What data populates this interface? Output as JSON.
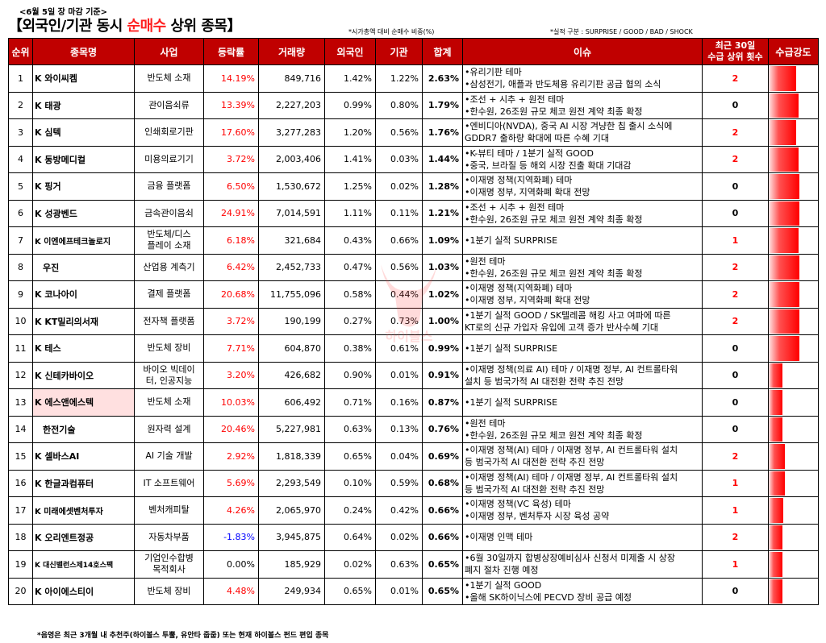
{
  "caption_date": "<6월 5일 장 마감 기준>",
  "title_pre": "【외국인/기관 동시 ",
  "title_hl": "순매수",
  "title_post": " 상위 종목】",
  "note_ratio": "*시가총액 대비 순매수 비중(%)",
  "note_perf": "*실적 구분 : SURPRISE / GOOD / BAD / SHOCK",
  "watermark_text": "하이볼스",
  "headers": {
    "rank": "순위",
    "name": "종목명",
    "sector": "사업",
    "change": "등락률",
    "volume": "거래량",
    "foreign": "외국인",
    "inst": "기관",
    "total": "합계",
    "issue": "이슈",
    "count_line1": "최근 30일",
    "count_line2": "수급 상위 횟수",
    "strength": "수급강도"
  },
  "accent_color": "#c00000",
  "rows": [
    {
      "rank": "1",
      "name": "K 와이씨켐",
      "sector": "반도체 소재",
      "change": "14.19%",
      "volume": "849,716",
      "foreign": "1.42%",
      "inst": "1.22%",
      "total": "2.63%",
      "issue1": "•유리기판 테마",
      "issue2": "•삼성전기, 애플과 반도체용 유리기판 공급 협의 소식",
      "count": "2",
      "strength": 0.55
    },
    {
      "rank": "2",
      "name": "K 태광",
      "sector": "관이음쇠류",
      "change": "13.39%",
      "volume": "2,227,203",
      "foreign": "0.99%",
      "inst": "0.80%",
      "total": "1.79%",
      "issue1": "•조선 + 시추 + 원전 테마",
      "issue2": "•한수원, 26조원 규모 체코 원전 계약 최종 확정",
      "count": "0",
      "strength": 0.6
    },
    {
      "rank": "3",
      "name": "K 심텍",
      "sector": "인쇄회로기판",
      "change": "17.60%",
      "volume": "3,277,283",
      "foreign": "1.20%",
      "inst": "0.56%",
      "total": "1.76%",
      "issue1": "•엔비디아(NVDA), 중국 AI 시장 겨냥한 칩 출시 소식에",
      "issue2": "GDDR7 출하량 확대에 따른 수혜 기대",
      "count": "2",
      "strength": 0.55
    },
    {
      "rank": "4",
      "name": "K 동방메디컬",
      "sector": "미용의료기기",
      "change": "3.72%",
      "volume": "2,003,406",
      "foreign": "1.41%",
      "inst": "0.03%",
      "total": "1.44%",
      "issue1": "•K-뷰티 테마 / 1분기 실적 GOOD",
      "issue2": "•중국, 브라질 등 해외 시장 진출 확대 기대감",
      "count": "2",
      "strength": 0.6
    },
    {
      "rank": "5",
      "name": "K 핑거",
      "sector": "금융 플랫폼",
      "change": "6.50%",
      "volume": "1,530,672",
      "foreign": "1.25%",
      "inst": "0.02%",
      "total": "1.28%",
      "issue1": "•이재명 정책(지역화폐) 테마",
      "issue2": "•이재명 정부, 지역화폐 확대 전망",
      "count": "0",
      "strength": 0.62
    },
    {
      "rank": "6",
      "name": "K 성광벤드",
      "sector": "금속관이음쇠",
      "change": "24.91%",
      "volume": "7,014,591",
      "foreign": "1.11%",
      "inst": "0.11%",
      "total": "1.21%",
      "issue1": "•조선 + 시추 + 원전 테마",
      "issue2": "•한수원, 26조원 규모 체코 원전 계약 최종 확정",
      "count": "0",
      "strength": 0.62
    },
    {
      "rank": "7",
      "name": "K 이엔에프테크놀로지",
      "sector1": "반도체/디스",
      "sector2": "플레이 소재",
      "change": "6.18%",
      "volume": "321,684",
      "foreign": "0.43%",
      "inst": "0.66%",
      "total": "1.09%",
      "issue1": "•1분기 실적 SURPRISE",
      "issue2": "",
      "count": "1",
      "strength": 0.6
    },
    {
      "rank": "8",
      "name": "우진",
      "sector": "산업용 계측기",
      "change": "6.42%",
      "volume": "2,452,733",
      "foreign": "0.47%",
      "inst": "0.56%",
      "total": "1.03%",
      "issue1": "•원전 테마",
      "issue2": "•한수원, 26조원 규모 체코 원전 계약 최종 확정",
      "count": "2",
      "strength": 0.62
    },
    {
      "rank": "9",
      "name": "K 코나아이",
      "sector": "결제 플랫폼",
      "change": "20.68%",
      "volume": "11,755,096",
      "foreign": "0.58%",
      "inst": "0.44%",
      "total": "1.02%",
      "issue1": "•이재명 정책(지역화폐) 테마",
      "issue2": "•이재명 정부, 지역화폐 확대 전망",
      "count": "2",
      "strength": 0.62
    },
    {
      "rank": "10",
      "name": "K KT밀리의서재",
      "sector": "전자책 플랫폼",
      "change": "3.72%",
      "volume": "190,199",
      "foreign": "0.27%",
      "inst": "0.73%",
      "total": "1.00%",
      "issue1": "•1분기 실적 GOOD / SK텔레콤 해킹 사고 여파에 따른",
      "issue2": "KT로의 신규 가입자 유입에 고객 증가 반사수혜 기대",
      "count": "2",
      "strength": 0.62
    },
    {
      "rank": "11",
      "name": "K 테스",
      "sector": "반도체 장비",
      "change": "7.71%",
      "volume": "604,870",
      "foreign": "0.38%",
      "inst": "0.61%",
      "total": "0.99%",
      "issue1": "•1분기 실적 SURPRISE",
      "issue2": "",
      "count": "0",
      "strength": 0.62
    },
    {
      "rank": "12",
      "name": "K 신테카바이오",
      "sector1": "바이오 빅데이",
      "sector2": "터, 인공지능",
      "change": "3.20%",
      "volume": "426,682",
      "foreign": "0.90%",
      "inst": "0.01%",
      "total": "0.91%",
      "issue1": "•이재명 정책(의료 AI) 테마 / 이재명 정부, AI 컨트롤타워",
      "issue2": "설치 등 범국가적 AI 대전환 전략 추진 전망",
      "count": "0",
      "strength": 0.28
    },
    {
      "rank": "13",
      "name": "K 에스앤에스텍",
      "sector": "반도체 소재",
      "change": "10.03%",
      "volume": "606,492",
      "foreign": "0.71%",
      "inst": "0.16%",
      "total": "0.87%",
      "issue1": "•1분기 실적 SURPRISE",
      "issue2": "",
      "count": "0",
      "strength": 0.28
    },
    {
      "rank": "14",
      "name": "한전기술",
      "sector": "원자력 설계",
      "change": "20.46%",
      "volume": "5,227,981",
      "foreign": "0.63%",
      "inst": "0.13%",
      "total": "0.76%",
      "issue1": "•원전 테마",
      "issue2": "•한수원, 26조원 규모 체코 원전 계약 최종 확정",
      "count": "0",
      "strength": 0.28
    },
    {
      "rank": "15",
      "name": "K 셀바스AI",
      "sector": "AI 기술 개발",
      "change": "2.92%",
      "volume": "1,818,339",
      "foreign": "0.65%",
      "inst": "0.04%",
      "total": "0.69%",
      "issue1": "•이재명 정책(AI) 테마 / 이재명 정부, AI 컨트롤타워 설치",
      "issue2": "등 범국가적 AI 대전환 전략 추진 전망",
      "count": "2",
      "strength": 0.33
    },
    {
      "rank": "16",
      "name": "K 한글과컴퓨터",
      "sector": "IT 소프트웨어",
      "change": "5.69%",
      "volume": "2,293,549",
      "foreign": "0.10%",
      "inst": "0.59%",
      "total": "0.68%",
      "issue1": "•이재명 정책(AI) 테마 / 이재명 정부, AI 컨트롤타워 설치",
      "issue2": "등 범국가적 AI 대전환 전략 추진 전망",
      "count": "1",
      "strength": 0.33
    },
    {
      "rank": "17",
      "name": "K 미래에셋벤처투자",
      "sector": "벤처캐피탈",
      "change": "4.26%",
      "volume": "2,065,970",
      "foreign": "0.24%",
      "inst": "0.42%",
      "total": "0.66%",
      "issue1": "•이재명 정책(VC 육성) 테마",
      "issue2": "•이재명 정부, 벤처투자 시장 육성 공약",
      "count": "1",
      "strength": 0.3
    },
    {
      "rank": "18",
      "name": "K 오리엔트정공",
      "sector": "자동차부품",
      "change": "-1.83%",
      "volume": "3,945,875",
      "foreign": "0.64%",
      "inst": "0.02%",
      "total": "0.66%",
      "issue1": "•이재명 인맥 테마",
      "issue2": "",
      "count": "2",
      "strength": 0.28
    },
    {
      "rank": "19",
      "name": "K 대신밸런스제14호스팩",
      "sector1": "기업인수합병",
      "sector2": "목적회사",
      "change": "0.00%",
      "volume": "185,929",
      "foreign": "0.02%",
      "inst": "0.63%",
      "total": "0.65%",
      "issue1": "•6월 30일까지 합병상장예비심사 신청서 미제출 시 상장",
      "issue2": "폐지 절차 진행 예정",
      "count": "1",
      "strength": 0.28
    },
    {
      "rank": "20",
      "name": "K 아이에스티이",
      "sector": "반도체 장비",
      "change": "4.48%",
      "volume": "249,934",
      "foreign": "0.65%",
      "inst": "0.01%",
      "total": "0.65%",
      "issue1": "•1분기 실적 GOOD",
      "issue2": "•올해 SK하이닉스에 PECVD 장비 공급 예정",
      "count": "0",
      "strength": 0.28
    }
  ],
  "footnote": "*음영은 최근 3개월 내 추천주(하이볼스 투뿔, 유안타 줍줍) 또는 현재 하이볼스 펀드 편입 종목"
}
